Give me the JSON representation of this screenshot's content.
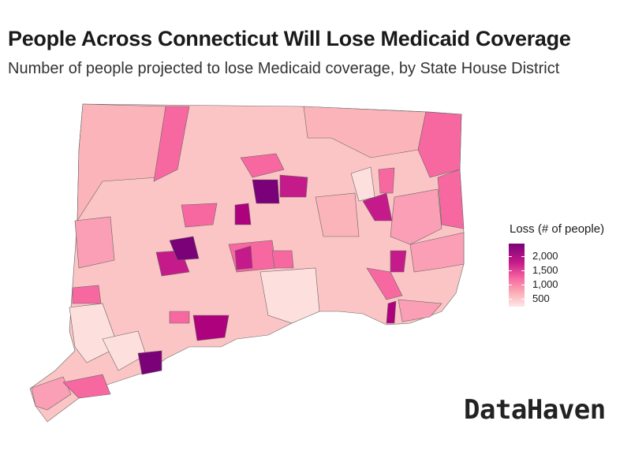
{
  "title": "People Across Connecticut Will Lose Medicaid Coverage",
  "subtitle": "Number of people projected to lose Medicaid coverage, by State House District",
  "legend": {
    "title": "Loss (# of people)",
    "ticks": [
      "2,000",
      "1,500",
      "1,000",
      "500"
    ],
    "colors": {
      "high": "#7a0177",
      "mid": "#f768a1",
      "low": "#fde7ea"
    }
  },
  "map": {
    "region": "Connecticut",
    "units": "State House Districts",
    "border_color": "#666666"
  },
  "brand": "DataHaven"
}
